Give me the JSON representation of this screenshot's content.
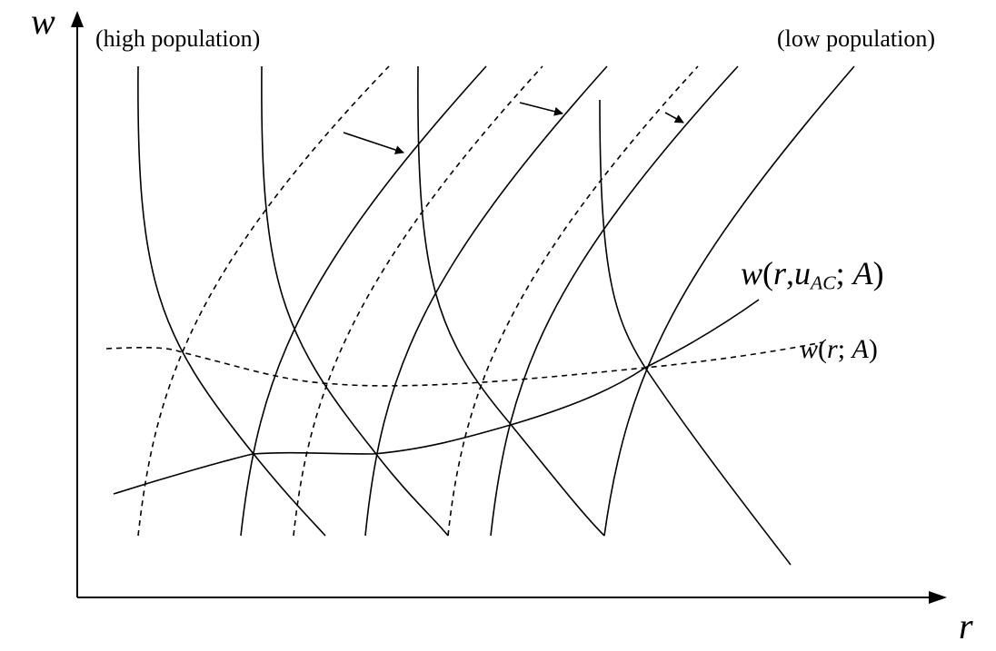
{
  "axes": {
    "y_label": "w",
    "x_label": "r"
  },
  "annotations": {
    "left": "(high population)",
    "right": "(low population)"
  },
  "curves": {
    "wage_curve": {
      "fn": "w",
      "arg_r": "r",
      "arg_u": "u",
      "arg_u_sub": "AC",
      "arg_a": "A"
    },
    "optimal_wage_curve": {
      "fn": "w",
      "arg_r": "r",
      "arg_a": "A"
    }
  },
  "colors": {
    "ink": "#000000",
    "background": "#ffffff"
  }
}
